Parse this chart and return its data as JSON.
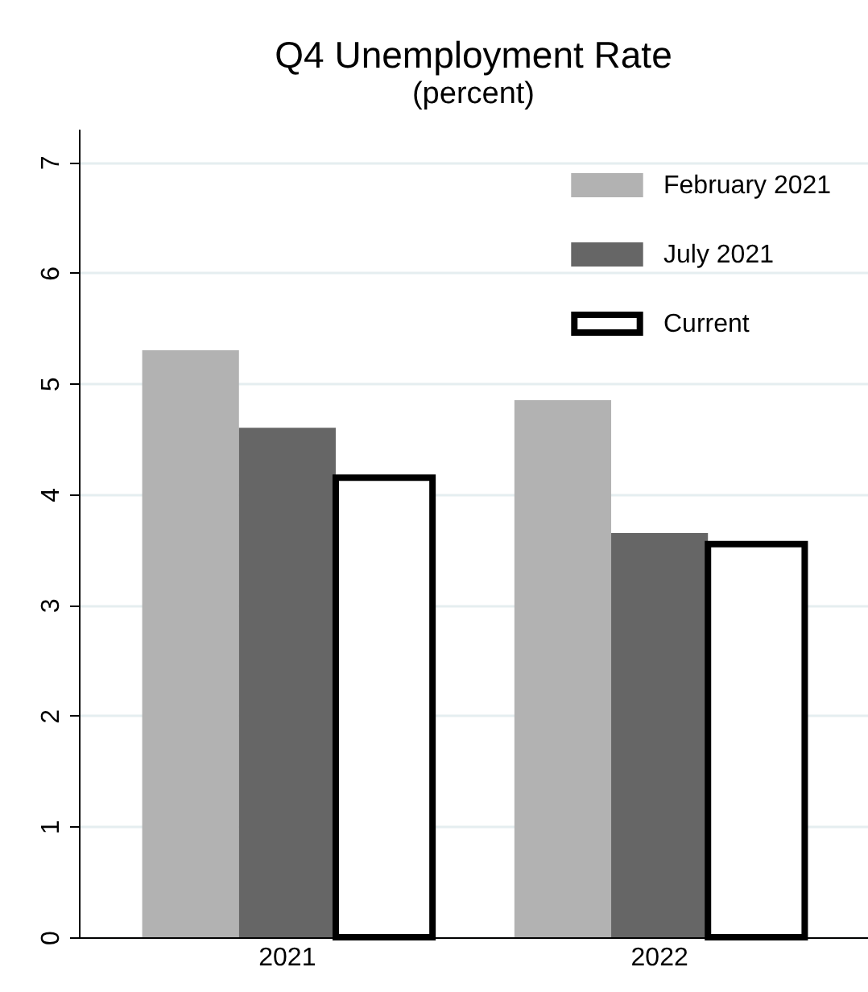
{
  "chart_data": {
    "type": "bar",
    "title": "Q4 Unemployment Rate",
    "subtitle": "(percent)",
    "categories": [
      "2021",
      "2022"
    ],
    "series": [
      {
        "name": "February 2021",
        "color": "#b2b2b2",
        "values": [
          5.3,
          4.85
        ]
      },
      {
        "name": "July 2021",
        "color": "#666666",
        "values": [
          4.6,
          3.65
        ]
      },
      {
        "name": "Current",
        "color": "#ffffff",
        "values": [
          4.15,
          3.55
        ]
      }
    ],
    "ylim": [
      0,
      7.3
    ],
    "yticks": [
      0,
      1,
      2,
      3,
      4,
      5,
      6,
      7
    ],
    "grid": "y",
    "legend": "top right"
  }
}
